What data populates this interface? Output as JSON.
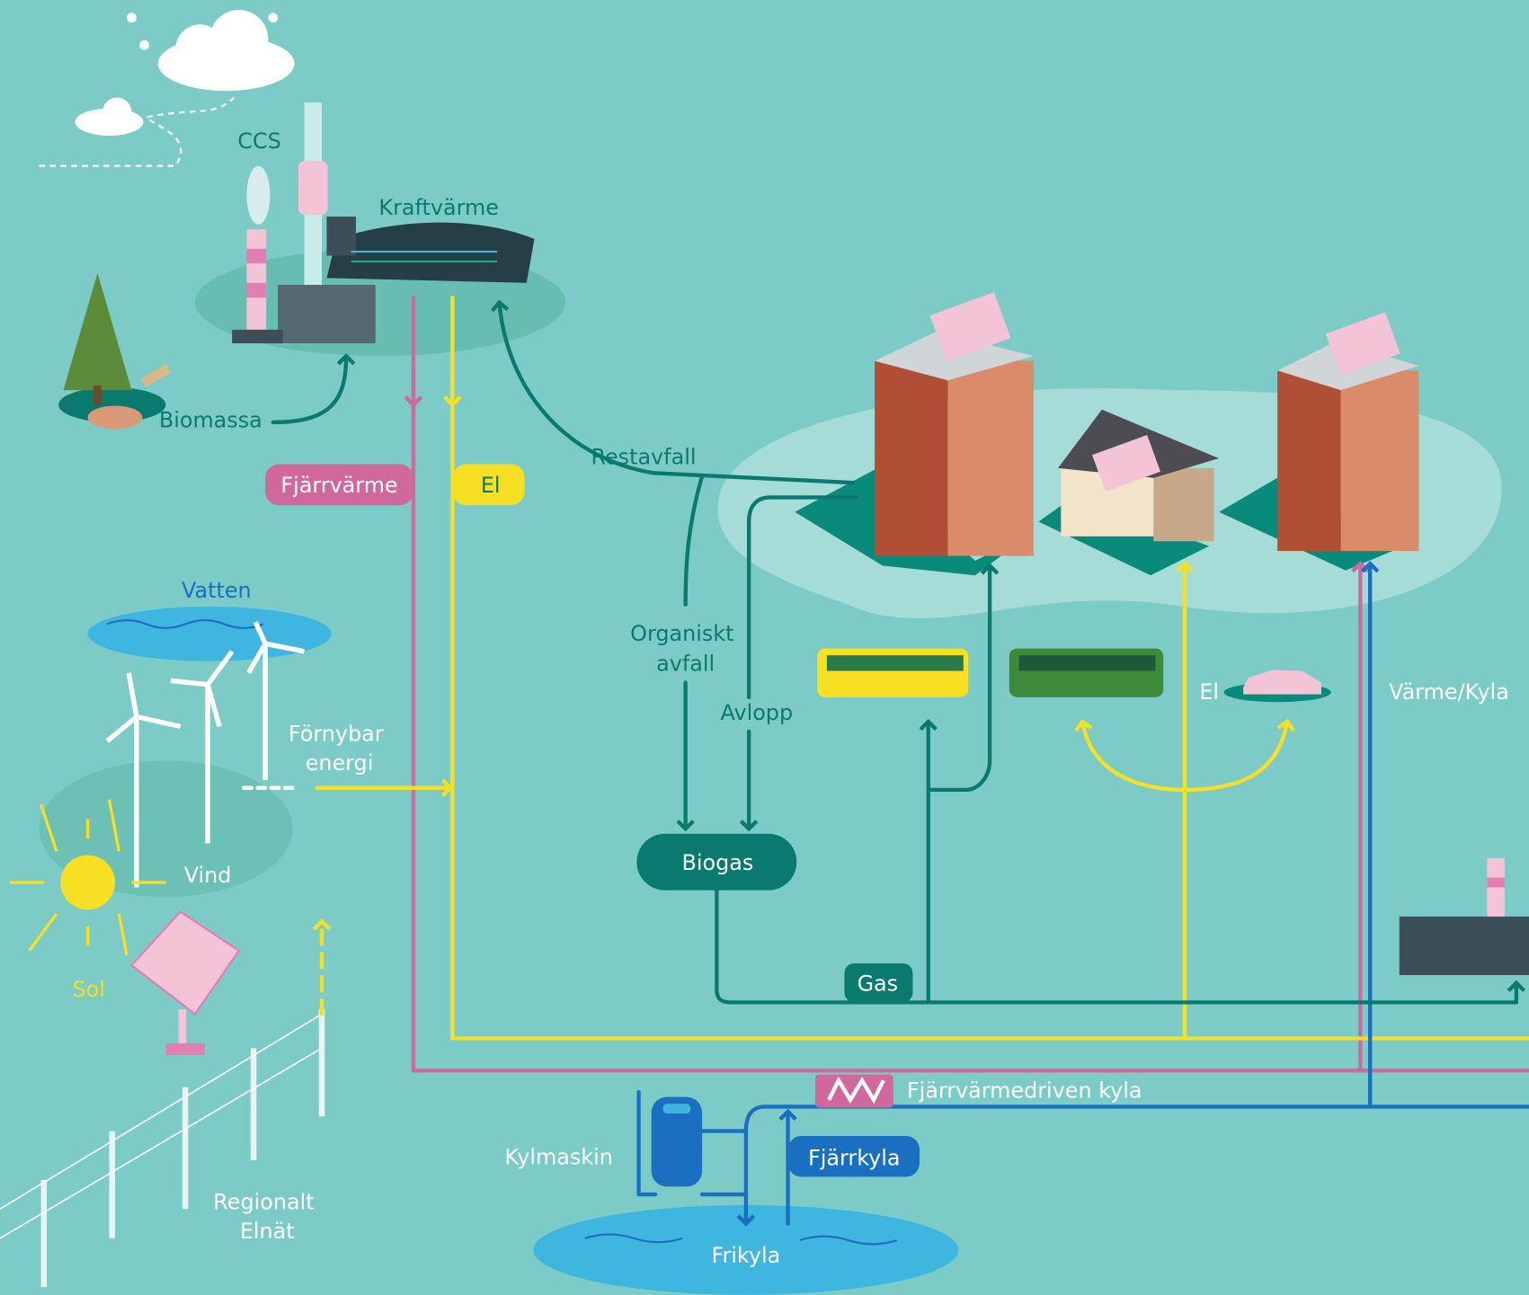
{
  "labels": {
    "ccs": "CCS",
    "kraftvarme": "Kraftvärme",
    "biomassa": "Biomassa",
    "fjarrvarme": "Fjärrvärme",
    "el_main": "El",
    "restavfall": "Restavfall",
    "vatten": "Vatten",
    "fornybar": [
      "Förnybar",
      "energi"
    ],
    "vind": "Vind",
    "sol": "Sol",
    "organiskt": [
      "Organiskt",
      "avfall"
    ],
    "avlopp": "Avlopp",
    "biogas": "Biogas",
    "gas": "Gas",
    "el_car": "El",
    "varme_kyla": "Värme/Kyla",
    "fjarrvarmedriven": "Fjärrvärmedriven kyla",
    "kylmaskin": "Kylmaskin",
    "fjarrkyla": "Fjärrkyla",
    "frikyla": "Frikyla",
    "regionalt": [
      "Regionalt",
      "Elnät"
    ]
  }
}
